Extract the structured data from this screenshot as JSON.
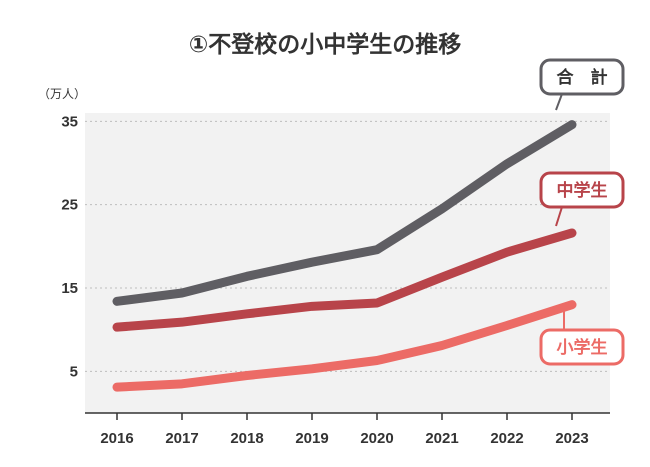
{
  "chart_data": {
    "type": "line",
    "title": "①不登校の小中学生の推移",
    "ylabel": "（万人）",
    "xlabel": "",
    "x": [
      "2016",
      "2017",
      "2018",
      "2019",
      "2020",
      "2021",
      "2022",
      "2023"
    ],
    "ylim": [
      0,
      36
    ],
    "yticks": [
      "5",
      "15",
      "25",
      "35"
    ],
    "grid": true,
    "series": [
      {
        "name": "合　計",
        "color": "#5f5e63",
        "values": [
          13.4,
          14.4,
          16.4,
          18.1,
          19.6,
          24.5,
          29.9,
          34.6
        ]
      },
      {
        "name": "中学生",
        "color": "#b8444a",
        "values": [
          10.3,
          10.9,
          11.9,
          12.8,
          13.2,
          16.3,
          19.3,
          21.6
        ]
      },
      {
        "name": "小学生",
        "color": "#ec6b66",
        "values": [
          3.1,
          3.5,
          4.5,
          5.3,
          6.3,
          8.1,
          10.5,
          13.0
        ]
      }
    ]
  }
}
